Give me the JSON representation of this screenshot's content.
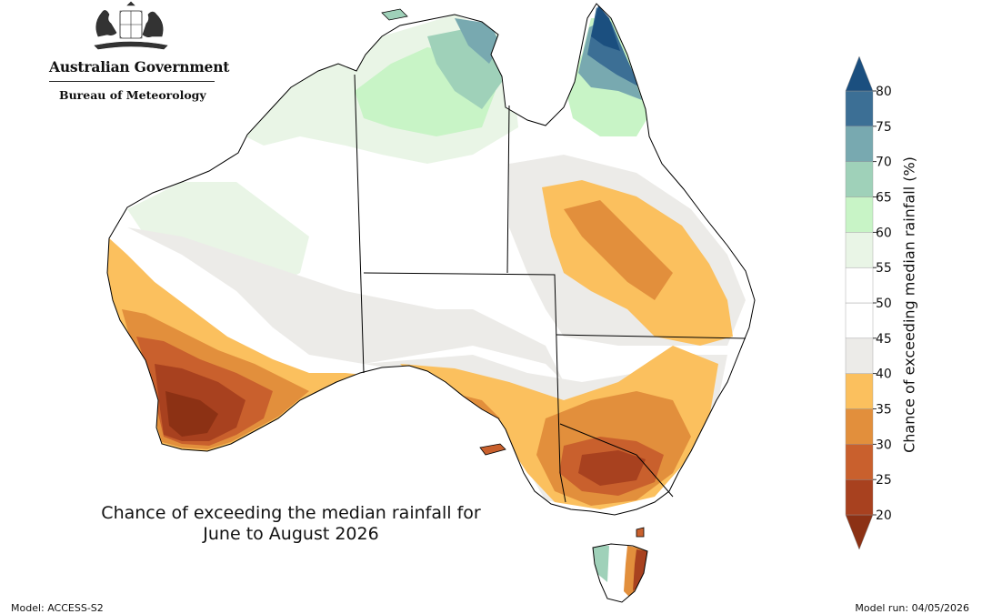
{
  "header": {
    "government": "Australian Government",
    "agency": "Bureau of Meteorology"
  },
  "map": {
    "caption_lines": [
      "Chance of exceeding the median rainfall for",
      "June to August 2026"
    ],
    "colors": {
      "dark_blue": "#1b4f7f",
      "blue": "#3c6f95",
      "teal": "#78a9b0",
      "mint": "#9fd1b9",
      "light_green": "#c8f4c6",
      "pale_green": "#e9f5e6",
      "white": "#ffffff",
      "light_grey": "#ecebe8",
      "yellow_orange": "#fbc05e",
      "orange": "#e28f3c",
      "dark_orange": "#c9602d",
      "rust": "#a8411f",
      "dark_rust": "#8c3114",
      "coast": "#000000"
    }
  },
  "colorbar": {
    "label": "Chance of exceeding median rainfall (%)",
    "ticks": [
      "80",
      "75",
      "70",
      "65",
      "60",
      "55",
      "50",
      "45",
      "40",
      "35",
      "30",
      "25",
      "20"
    ],
    "colors": [
      "#8c3114",
      "#a8411f",
      "#c9602d",
      "#e28f3c",
      "#fbc05e",
      "#ecebe8",
      "#ffffff",
      "#ffffff",
      "#e9f5e6",
      "#c8f4c6",
      "#9fd1b9",
      "#78a9b0",
      "#3c6f95",
      "#1b4f7f"
    ]
  },
  "footer": {
    "model": "Model: ACCESS-S2",
    "model_run": "Model run: 04/05/2026"
  }
}
